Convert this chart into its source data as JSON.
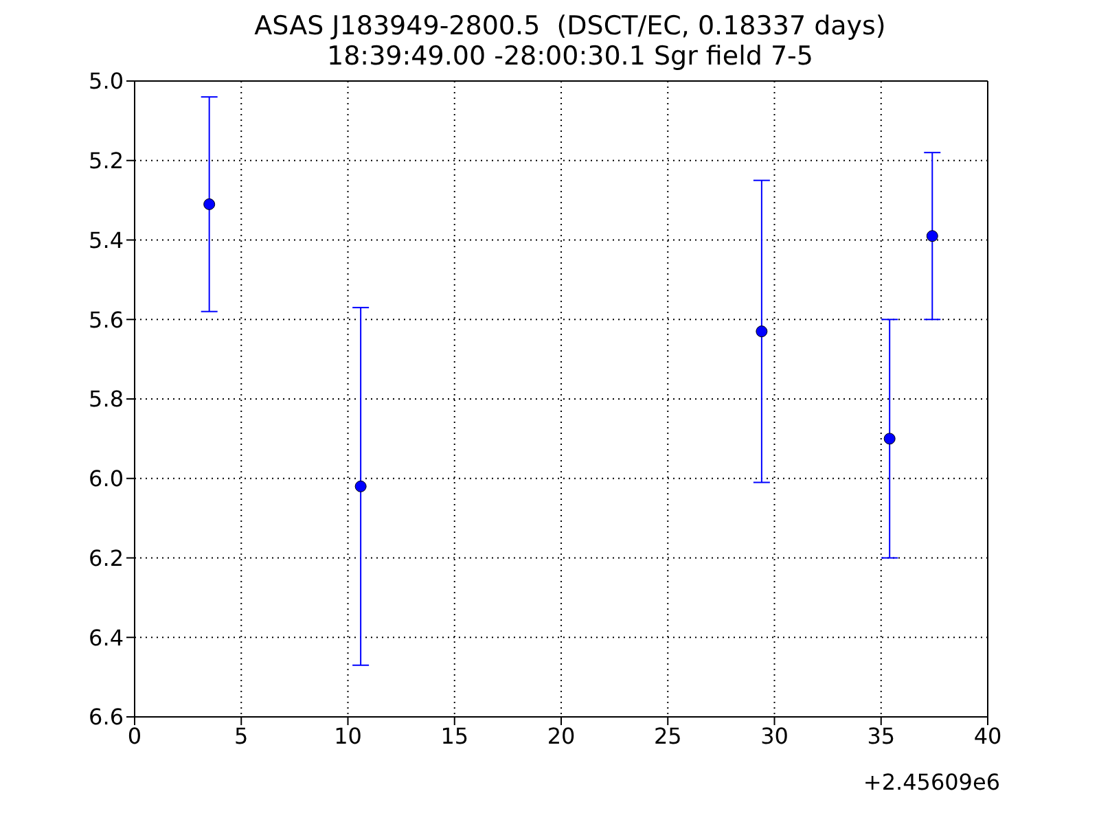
{
  "chart_data": {
    "type": "scatter",
    "title": "ASAS J183949-2800.5  (DSCT/EC, 0.18337 days)",
    "subtitle": "18:39:49.00 -28:00:30.1 Sgr field 7-5",
    "x": [
      3.5,
      10.6,
      29.4,
      35.4,
      37.4
    ],
    "series": [
      {
        "color": "#0000ff",
        "values": [
          5.31,
          6.02,
          5.63,
          5.9,
          5.39
        ],
        "errors": [
          0.27,
          0.45,
          0.38,
          0.3,
          0.21
        ]
      }
    ],
    "xlim": [
      0,
      40
    ],
    "xticks": [
      0,
      5,
      10,
      15,
      20,
      25,
      30,
      35,
      40
    ],
    "ylim": [
      6.6,
      5.0
    ],
    "yticks": [
      {
        "value": 5.0,
        "label": "5.0"
      },
      {
        "value": 5.2,
        "label": "5.2"
      },
      {
        "value": 5.4,
        "label": "5.4"
      },
      {
        "value": 5.6,
        "label": "5.6"
      },
      {
        "value": 5.8,
        "label": "5.8"
      },
      {
        "value": 6.0,
        "label": "6.0"
      },
      {
        "value": 6.2,
        "label": "6.2"
      },
      {
        "value": 6.4,
        "label": "6.4"
      },
      {
        "value": 6.6,
        "label": "6.6"
      }
    ],
    "annotations": [
      "+2.45609e6"
    ],
    "grid": true,
    "marker": "circle"
  }
}
